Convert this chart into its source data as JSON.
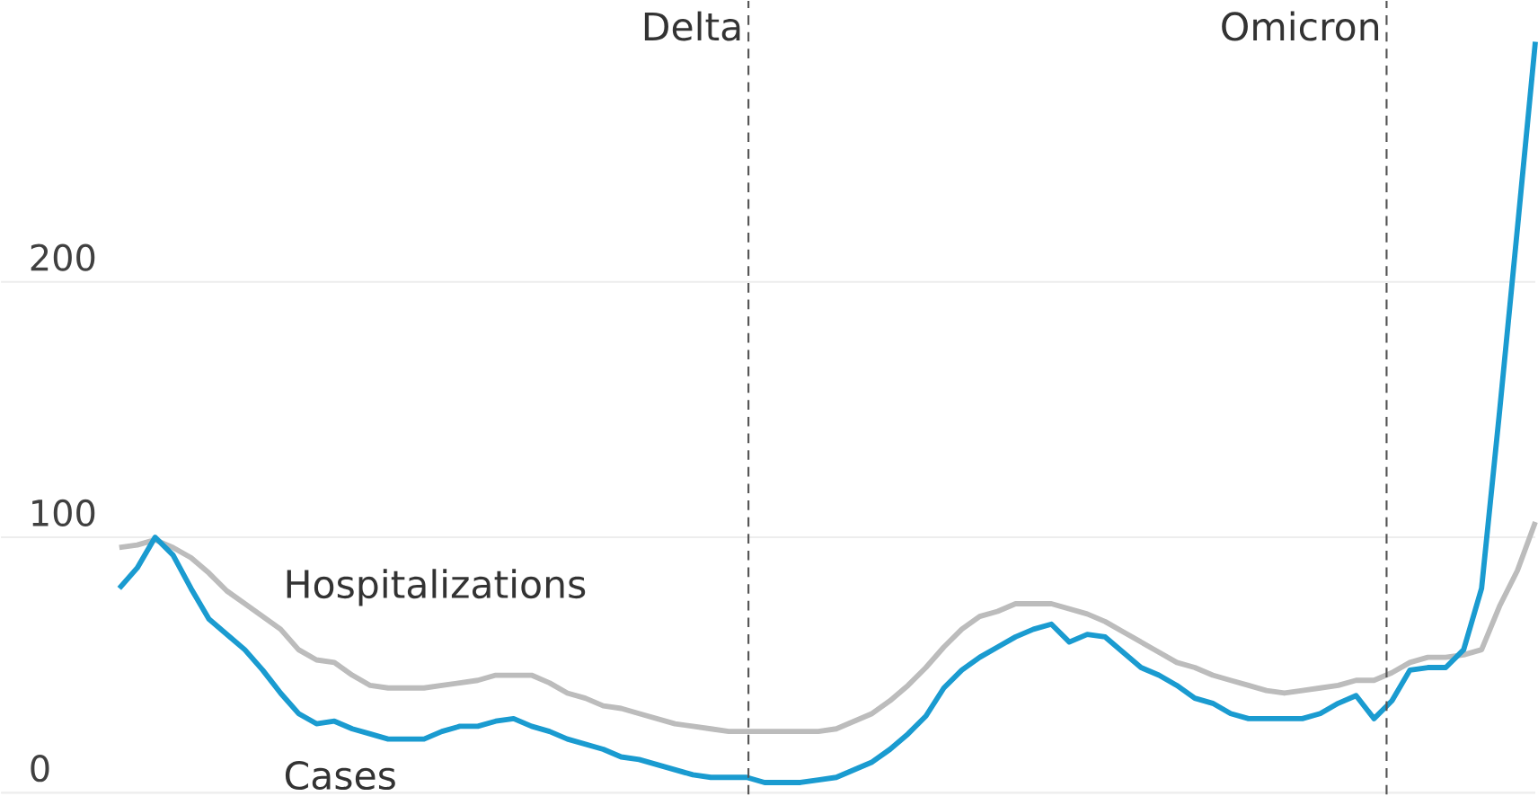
{
  "chart_data": {
    "type": "line",
    "categories": [
      null,
      null,
      null,
      null,
      null,
      null,
      null,
      null,
      null,
      null,
      null,
      null,
      null,
      null,
      null,
      null,
      null,
      null,
      null,
      null,
      null,
      null,
      null,
      null,
      null,
      null,
      null,
      null,
      null,
      null,
      null,
      null,
      null,
      null,
      null,
      null,
      null,
      null,
      null,
      null,
      null,
      null,
      null,
      null,
      null,
      null,
      null,
      null,
      null,
      null,
      null,
      null,
      null,
      null,
      null,
      null,
      null,
      null,
      null,
      null,
      null,
      null,
      null,
      null,
      null,
      null,
      null,
      null,
      null,
      null,
      null,
      null,
      null,
      null,
      null,
      null,
      null,
      null,
      null,
      null
    ],
    "series": [
      {
        "name": "Hospitalizations",
        "color": "#bcbcbc",
        "values": [
          96,
          97,
          99,
          96,
          92,
          86,
          79,
          74,
          69,
          64,
          56,
          52,
          51,
          46,
          42,
          41,
          41,
          41,
          42,
          43,
          44,
          46,
          46,
          46,
          43,
          39,
          37,
          34,
          33,
          31,
          29,
          27,
          26,
          25,
          24,
          24,
          24,
          24,
          24,
          24,
          25,
          28,
          31,
          36,
          42,
          49,
          57,
          64,
          69,
          71,
          74,
          74,
          74,
          72,
          70,
          67,
          63,
          59,
          55,
          51,
          49,
          46,
          44,
          42,
          40,
          39,
          40,
          41,
          42,
          44,
          44,
          47,
          51,
          53,
          53,
          54,
          56,
          73,
          87,
          106
        ]
      },
      {
        "name": "Cases",
        "color": "#1a9bd0",
        "values": [
          80,
          88,
          100,
          93,
          80,
          68,
          62,
          56,
          48,
          39,
          31,
          27,
          28,
          25,
          23,
          21,
          21,
          21,
          24,
          26,
          26,
          28,
          29,
          26,
          24,
          21,
          19,
          17,
          14,
          13,
          11,
          9,
          7,
          6,
          6,
          6,
          4,
          4,
          4,
          5,
          6,
          9,
          12,
          17,
          23,
          30,
          41,
          48,
          53,
          57,
          61,
          64,
          66,
          59,
          62,
          61,
          55,
          49,
          46,
          42,
          37,
          35,
          31,
          29,
          29,
          29,
          29,
          31,
          35,
          38,
          29,
          36,
          48,
          49,
          49,
          56,
          80,
          149,
          221,
          294
        ]
      }
    ],
    "ylim": [
      0,
      310
    ],
    "yticks": [
      0,
      100,
      200
    ],
    "grid": "y",
    "tick_labels": "y",
    "annotations": [
      "Delta",
      "Omicron"
    ]
  }
}
